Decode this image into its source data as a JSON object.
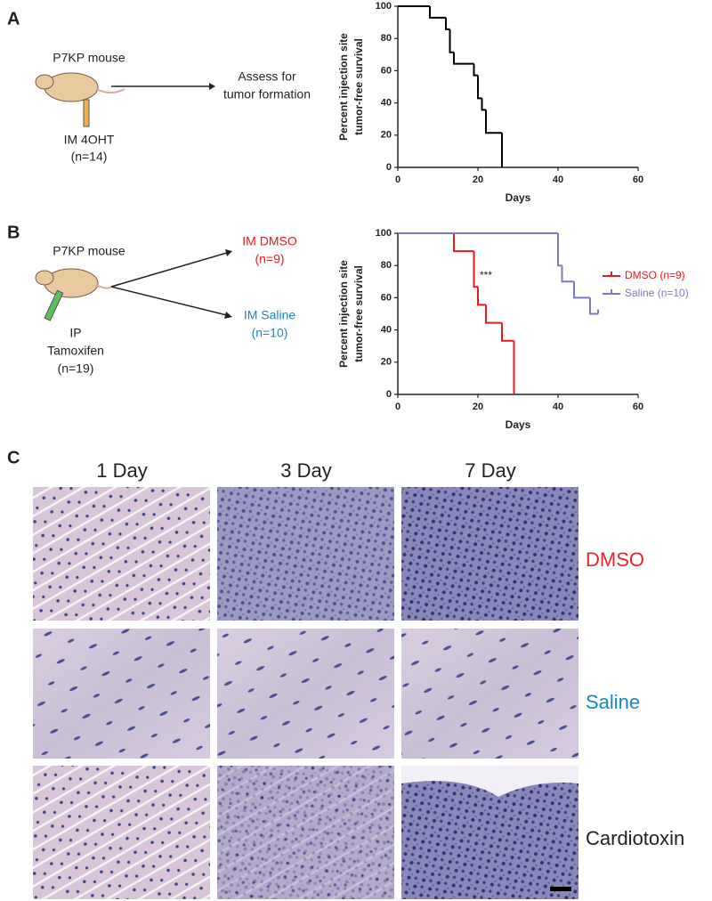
{
  "figure": {
    "panel_a": {
      "label": "A",
      "mouse": "P7KP mouse",
      "injection": "IM 4OHT",
      "n": "(n=14)",
      "outcome": [
        "Assess for",
        "tumor formation"
      ]
    },
    "panel_b": {
      "label": "B",
      "mouse": "P7KP mouse",
      "arm1": [
        "IM DMSO",
        "(n=9)"
      ],
      "arm2": [
        "IM Saline",
        "(n=10)"
      ],
      "injection": [
        "IP",
        "Tamoxifen",
        "(n=19)"
      ]
    },
    "panel_c": {
      "label": "C",
      "columns": [
        "1 Day",
        "3 Day",
        "7 Day"
      ],
      "rows": [
        "DMSO",
        "Saline",
        "Cardiotoxin"
      ]
    }
  },
  "chart_data": [
    {
      "type": "step",
      "ylabel": [
        "Percent injection site",
        "tumor-free survival"
      ],
      "xlabel": "Days",
      "xlim": [
        0,
        60
      ],
      "ylim": [
        0,
        100
      ],
      "xticks": [
        0,
        20,
        40,
        60
      ],
      "yticks": [
        0,
        20,
        40,
        60,
        80,
        100
      ],
      "series": [
        {
          "color": "#000000",
          "x": [
            0,
            8,
            12,
            13,
            14,
            19,
            20,
            21,
            22,
            26
          ],
          "values": [
            100,
            92.9,
            85.7,
            71.4,
            64.3,
            57.1,
            42.9,
            35.7,
            21.4,
            0
          ]
        }
      ]
    },
    {
      "type": "step",
      "ylabel": [
        "Percent injection site",
        "tumor-free survival"
      ],
      "xlabel": "Days",
      "xlim": [
        0,
        60
      ],
      "ylim": [
        0,
        100
      ],
      "xticks": [
        0,
        20,
        40,
        60
      ],
      "yticks": [
        0,
        20,
        40,
        60,
        80,
        100
      ],
      "annotation": "***",
      "series": [
        {
          "name": "DMSO (n=9)",
          "color": "#e41a1c",
          "x": [
            0,
            14,
            19,
            20,
            22,
            26,
            29
          ],
          "values": [
            100,
            88.9,
            66.7,
            55.6,
            44.4,
            33.3,
            0
          ]
        },
        {
          "name": "Saline (n=10)",
          "color": "#7b7bbf",
          "x": [
            0,
            40,
            41,
            44,
            48,
            50
          ],
          "values": [
            100,
            80,
            70,
            60,
            50,
            50
          ]
        }
      ]
    }
  ]
}
